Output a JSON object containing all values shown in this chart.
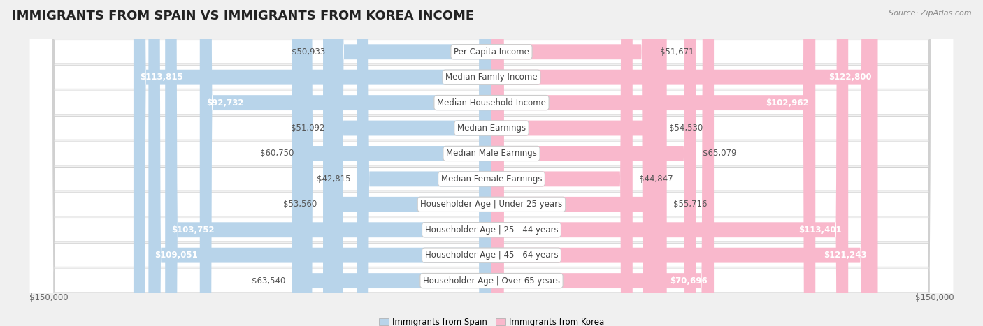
{
  "title": "IMMIGRANTS FROM SPAIN VS IMMIGRANTS FROM KOREA INCOME",
  "source": "Source: ZipAtlas.com",
  "categories": [
    "Per Capita Income",
    "Median Family Income",
    "Median Household Income",
    "Median Earnings",
    "Median Male Earnings",
    "Median Female Earnings",
    "Householder Age | Under 25 years",
    "Householder Age | 25 - 44 years",
    "Householder Age | 45 - 64 years",
    "Householder Age | Over 65 years"
  ],
  "spain_values": [
    50933,
    113815,
    92732,
    51092,
    60750,
    42815,
    53560,
    103752,
    109051,
    63540
  ],
  "korea_values": [
    51671,
    122800,
    102962,
    54530,
    65079,
    44847,
    55716,
    113401,
    121243,
    70696
  ],
  "spain_labels": [
    "$50,933",
    "$113,815",
    "$92,732",
    "$51,092",
    "$60,750",
    "$42,815",
    "$53,560",
    "$103,752",
    "$109,051",
    "$63,540"
  ],
  "korea_labels": [
    "$51,671",
    "$122,800",
    "$102,962",
    "$54,530",
    "$65,079",
    "$44,847",
    "$55,716",
    "$113,401",
    "$121,243",
    "$70,696"
  ],
  "spain_color_light": "#b8d4ea",
  "spain_color_dark": "#5b9bd5",
  "korea_color_light": "#f9b8cc",
  "korea_color_dark": "#e8507a",
  "max_value": 150000,
  "legend_spain": "Immigrants from Spain",
  "legend_korea": "Immigrants from Korea",
  "background_color": "#f0f0f0",
  "row_bg_color": "#ffffff",
  "title_fontsize": 13,
  "label_fontsize": 8.5,
  "category_fontsize": 8.5,
  "inside_threshold": 70000
}
